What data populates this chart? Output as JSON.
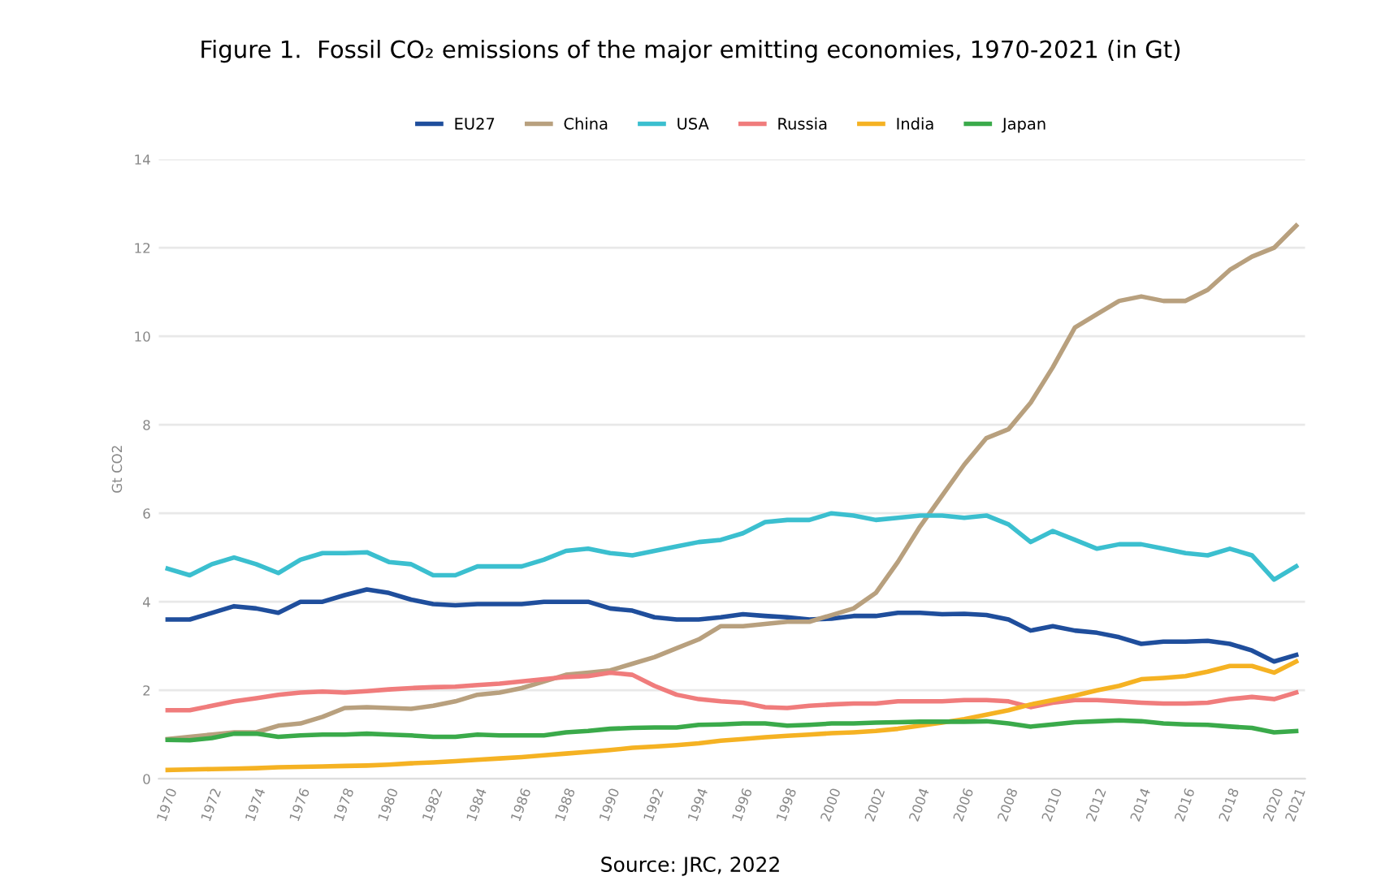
{
  "chart_data": {
    "type": "line",
    "title": "Figure 1.  Fossil CO₂ emissions of the major emitting economies, 1970-2021 (in Gt)",
    "ylabel": "Gt CO2",
    "x": [
      1970,
      1971,
      1972,
      1973,
      1974,
      1975,
      1976,
      1977,
      1978,
      1979,
      1980,
      1981,
      1982,
      1983,
      1984,
      1985,
      1986,
      1987,
      1988,
      1989,
      1990,
      1991,
      1992,
      1993,
      1994,
      1995,
      1996,
      1997,
      1998,
      1999,
      2000,
      2001,
      2002,
      2003,
      2004,
      2005,
      2006,
      2007,
      2008,
      2009,
      2010,
      2011,
      2012,
      2013,
      2014,
      2015,
      2016,
      2017,
      2018,
      2019,
      2020,
      2021
    ],
    "series": [
      {
        "name": "EU27",
        "color": "#1f4e9c",
        "values": [
          3.6,
          3.6,
          3.75,
          3.9,
          3.85,
          3.75,
          4.0,
          4.0,
          4.15,
          4.28,
          4.2,
          4.05,
          3.95,
          3.92,
          3.95,
          3.95,
          3.95,
          4.0,
          4.0,
          4.0,
          3.85,
          3.8,
          3.65,
          3.6,
          3.6,
          3.65,
          3.72,
          3.68,
          3.65,
          3.6,
          3.62,
          3.68,
          3.68,
          3.75,
          3.75,
          3.72,
          3.73,
          3.7,
          3.6,
          3.35,
          3.45,
          3.35,
          3.3,
          3.2,
          3.05,
          3.1,
          3.1,
          3.12,
          3.05,
          2.9,
          2.65,
          2.8
        ]
      },
      {
        "name": "China",
        "color": "#b8a07e",
        "values": [
          0.9,
          0.95,
          1.0,
          1.05,
          1.05,
          1.2,
          1.25,
          1.4,
          1.6,
          1.62,
          1.6,
          1.58,
          1.65,
          1.75,
          1.9,
          1.95,
          2.05,
          2.2,
          2.35,
          2.4,
          2.45,
          2.6,
          2.75,
          2.95,
          3.15,
          3.45,
          3.45,
          3.5,
          3.55,
          3.55,
          3.7,
          3.85,
          4.2,
          4.9,
          5.7,
          6.4,
          7.1,
          7.7,
          7.9,
          8.5,
          9.3,
          10.2,
          10.5,
          10.8,
          10.9,
          10.8,
          10.8,
          11.05,
          11.5,
          11.8,
          12.0,
          12.5
        ]
      },
      {
        "name": "USA",
        "color": "#3bbfcf",
        "values": [
          4.75,
          4.6,
          4.85,
          5.0,
          4.85,
          4.65,
          4.95,
          5.1,
          5.1,
          5.12,
          4.9,
          4.85,
          4.6,
          4.6,
          4.8,
          4.8,
          4.8,
          4.95,
          5.15,
          5.2,
          5.1,
          5.05,
          5.15,
          5.25,
          5.35,
          5.4,
          5.55,
          5.8,
          5.85,
          5.85,
          6.0,
          5.95,
          5.85,
          5.9,
          5.95,
          5.95,
          5.9,
          5.95,
          5.75,
          5.35,
          5.6,
          5.4,
          5.2,
          5.3,
          5.3,
          5.2,
          5.1,
          5.05,
          5.2,
          5.05,
          4.5,
          4.8
        ]
      },
      {
        "name": "Russia",
        "color": "#f07c7c",
        "values": [
          1.55,
          1.55,
          1.65,
          1.75,
          1.82,
          1.9,
          1.95,
          1.97,
          1.95,
          1.98,
          2.02,
          2.05,
          2.07,
          2.08,
          2.12,
          2.15,
          2.2,
          2.25,
          2.3,
          2.32,
          2.4,
          2.35,
          2.1,
          1.9,
          1.8,
          1.75,
          1.72,
          1.62,
          1.6,
          1.65,
          1.68,
          1.7,
          1.7,
          1.75,
          1.75,
          1.75,
          1.78,
          1.78,
          1.75,
          1.62,
          1.72,
          1.78,
          1.78,
          1.75,
          1.72,
          1.7,
          1.7,
          1.72,
          1.8,
          1.85,
          1.8,
          1.95
        ]
      },
      {
        "name": "India",
        "color": "#f5b223",
        "values": [
          0.2,
          0.21,
          0.22,
          0.23,
          0.24,
          0.26,
          0.27,
          0.28,
          0.29,
          0.3,
          0.32,
          0.35,
          0.37,
          0.4,
          0.43,
          0.46,
          0.49,
          0.53,
          0.57,
          0.61,
          0.65,
          0.7,
          0.73,
          0.76,
          0.8,
          0.86,
          0.9,
          0.94,
          0.97,
          1.0,
          1.03,
          1.05,
          1.08,
          1.13,
          1.2,
          1.27,
          1.35,
          1.45,
          1.55,
          1.68,
          1.78,
          1.88,
          2.0,
          2.1,
          2.25,
          2.28,
          2.32,
          2.42,
          2.55,
          2.55,
          2.4,
          2.65
        ]
      },
      {
        "name": "Japan",
        "color": "#3aaa4a",
        "values": [
          0.88,
          0.87,
          0.92,
          1.02,
          1.02,
          0.95,
          0.98,
          1.0,
          1.0,
          1.02,
          1.0,
          0.98,
          0.95,
          0.95,
          1.0,
          0.98,
          0.98,
          0.98,
          1.05,
          1.08,
          1.13,
          1.15,
          1.16,
          1.16,
          1.22,
          1.23,
          1.25,
          1.25,
          1.2,
          1.22,
          1.25,
          1.25,
          1.27,
          1.28,
          1.29,
          1.29,
          1.29,
          1.3,
          1.25,
          1.18,
          1.23,
          1.28,
          1.3,
          1.32,
          1.3,
          1.25,
          1.23,
          1.22,
          1.18,
          1.15,
          1.05,
          1.08
        ]
      }
    ],
    "xlim": [
      1969.6,
      2021.4
    ],
    "xticks": [
      1970,
      1972,
      1974,
      1976,
      1978,
      1980,
      1982,
      1984,
      1986,
      1988,
      1990,
      1992,
      1994,
      1996,
      1998,
      2000,
      2002,
      2004,
      2006,
      2008,
      2010,
      2012,
      2014,
      2016,
      2018,
      2020,
      2021
    ],
    "ylim": [
      0,
      14
    ],
    "yticks": [
      0,
      2,
      4,
      6,
      8,
      10,
      12,
      14
    ],
    "grid": "y",
    "legend": "top",
    "marker": "none",
    "line_style": "solid",
    "annotations": [
      "Source: JRC, 2022"
    ]
  }
}
